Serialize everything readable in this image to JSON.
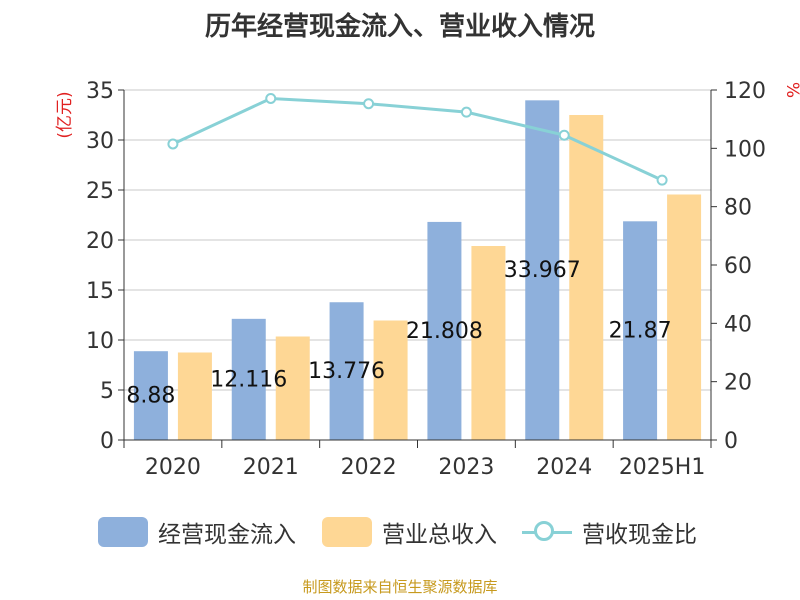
{
  "chart_data": {
    "type": "bar",
    "title": "历年经营现金流入、营业收入情况",
    "categories": [
      "2020",
      "2021",
      "2022",
      "2023",
      "2024",
      "2025H1"
    ],
    "y_left_label": "(亿元)",
    "y_right_label": "%",
    "y_left_lim": [
      0,
      35
    ],
    "y_left_ticks": [
      0,
      5,
      10,
      15,
      20,
      25,
      30,
      35
    ],
    "y_right_lim": [
      0,
      120
    ],
    "y_right_ticks": [
      0,
      20,
      40,
      60,
      80,
      100,
      120
    ],
    "grid": true,
    "legend_position": "bottom",
    "series": [
      {
        "name": "经营现金流入",
        "type": "bar",
        "axis": "left",
        "color": "#8eb0dc",
        "values": [
          8.88,
          12.116,
          13.776,
          21.808,
          33.967,
          21.87
        ],
        "labels": [
          "8.88",
          "12.116",
          "13.776",
          "21.808",
          "33.967",
          "21.87"
        ]
      },
      {
        "name": "营业总收入",
        "type": "bar",
        "axis": "left",
        "color": "#fed795",
        "values": [
          8.75,
          10.35,
          11.95,
          19.4,
          32.5,
          24.55
        ]
      },
      {
        "name": "营收现金比",
        "type": "line",
        "axis": "right",
        "color": "#88d1d6",
        "values": [
          101.5,
          117.1,
          115.3,
          112.4,
          104.5,
          89.1
        ]
      }
    ]
  },
  "source_note": "制图数据来自恒生聚源数据库"
}
